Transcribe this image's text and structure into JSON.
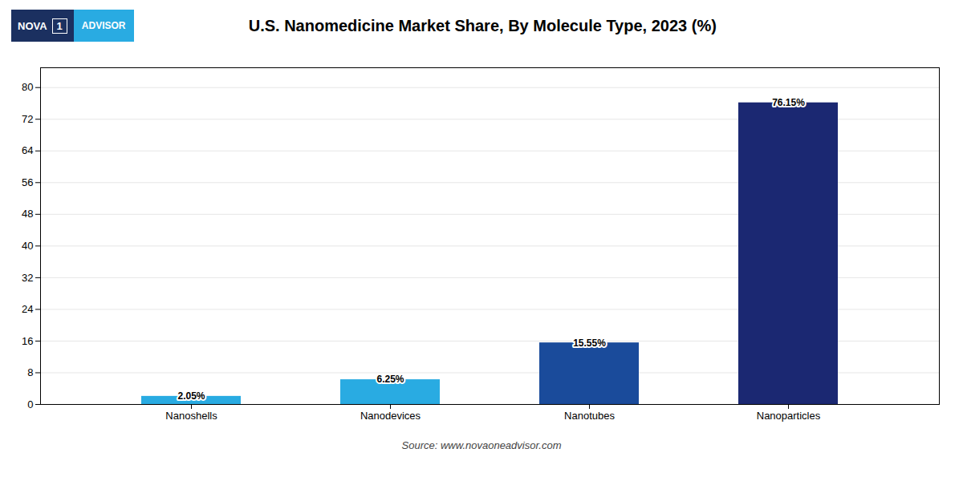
{
  "chart_data": {
    "type": "bar",
    "title": "U.S. Nanomedicine Market Share, By Molecule Type, 2023 (%)",
    "categories": [
      "Nanoshells",
      "Nanodevices",
      "Nanotubes",
      "Nanoparticles"
    ],
    "values": [
      2.05,
      6.25,
      15.55,
      76.15
    ],
    "value_labels": [
      "2.05%",
      "6.25%",
      "15.55%",
      "76.15%"
    ],
    "colors": [
      "#29ABE2",
      "#29ABE2",
      "#1A4B9B",
      "#1B2872"
    ],
    "ylim": [
      0,
      85
    ],
    "yticks": [
      0,
      8,
      16,
      24,
      32,
      40,
      48,
      56,
      64,
      72,
      80
    ],
    "grid": true,
    "data_labels": true,
    "annotations": [
      "NOVA",
      "1",
      "ADVISOR",
      "Source: www.novaoneadvisor.com"
    ]
  }
}
